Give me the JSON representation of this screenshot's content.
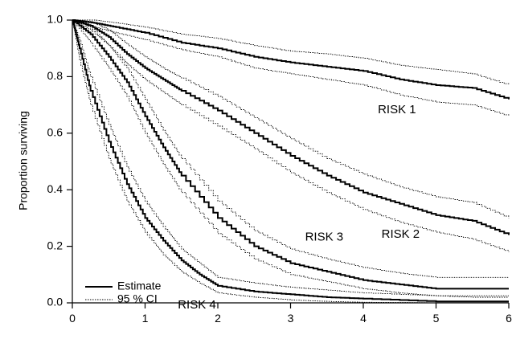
{
  "chart_data": {
    "type": "line",
    "title": "",
    "xlabel": "",
    "ylabel": "Proportion surviving",
    "xlim": [
      0,
      6
    ],
    "ylim": [
      0.0,
      1.0
    ],
    "x_ticks": [
      "0",
      "1",
      "2",
      "3",
      "4",
      "5",
      "6"
    ],
    "y_ticks": [
      "0.0",
      "0.2",
      "0.4",
      "0.6",
      "0.8",
      "1.0"
    ],
    "grid": false,
    "legend": {
      "placement": "bottom-left",
      "entries": [
        {
          "label": "Estimate",
          "style": "solid"
        },
        {
          "label": "95 % CI",
          "style": "dotted"
        }
      ]
    },
    "series": [
      {
        "name": "RISK 1",
        "label_at": [
          4.2,
          0.67
        ],
        "x": [
          0,
          0.3,
          0.6,
          1.0,
          1.5,
          2.0,
          2.5,
          3.0,
          3.5,
          4.0,
          4.5,
          5.0,
          5.5,
          6.0
        ],
        "estimate": [
          1.0,
          0.99,
          0.975,
          0.955,
          0.92,
          0.9,
          0.87,
          0.85,
          0.835,
          0.82,
          0.79,
          0.77,
          0.76,
          0.72
        ],
        "ci_upper": [
          1.0,
          1.0,
          0.99,
          0.975,
          0.95,
          0.935,
          0.91,
          0.89,
          0.88,
          0.865,
          0.84,
          0.825,
          0.81,
          0.77
        ],
        "ci_lower": [
          1.0,
          0.975,
          0.955,
          0.93,
          0.895,
          0.87,
          0.83,
          0.81,
          0.79,
          0.77,
          0.735,
          0.71,
          0.7,
          0.66
        ]
      },
      {
        "name": "RISK 2",
        "label_at": [
          4.25,
          0.23
        ],
        "x": [
          0,
          0.25,
          0.5,
          0.75,
          1.0,
          1.25,
          1.5,
          2.0,
          2.5,
          3.0,
          3.5,
          4.0,
          4.5,
          5.0,
          5.5,
          6.0
        ],
        "estimate": [
          1.0,
          0.98,
          0.94,
          0.88,
          0.83,
          0.79,
          0.75,
          0.68,
          0.6,
          0.52,
          0.45,
          0.39,
          0.35,
          0.31,
          0.29,
          0.24
        ],
        "ci_upper": [
          1.0,
          0.995,
          0.965,
          0.915,
          0.87,
          0.83,
          0.795,
          0.73,
          0.655,
          0.58,
          0.51,
          0.455,
          0.41,
          0.375,
          0.355,
          0.3
        ],
        "ci_lower": [
          1.0,
          0.965,
          0.91,
          0.845,
          0.79,
          0.745,
          0.7,
          0.625,
          0.545,
          0.46,
          0.39,
          0.33,
          0.285,
          0.25,
          0.225,
          0.18
        ]
      },
      {
        "name": "RISK 3",
        "label_at": [
          3.2,
          0.22
        ],
        "x": [
          0,
          0.25,
          0.5,
          0.75,
          1.0,
          1.25,
          1.5,
          2.0,
          2.5,
          3.0,
          3.5,
          4.0,
          4.5,
          5.0,
          5.5,
          6.0
        ],
        "estimate": [
          1.0,
          0.95,
          0.87,
          0.78,
          0.66,
          0.55,
          0.45,
          0.3,
          0.2,
          0.14,
          0.11,
          0.08,
          0.065,
          0.05,
          0.05,
          0.05
        ],
        "ci_upper": [
          1.0,
          0.975,
          0.91,
          0.83,
          0.72,
          0.61,
          0.51,
          0.36,
          0.255,
          0.19,
          0.155,
          0.125,
          0.105,
          0.09,
          0.09,
          0.09
        ],
        "ci_lower": [
          1.0,
          0.92,
          0.83,
          0.73,
          0.6,
          0.49,
          0.39,
          0.245,
          0.155,
          0.1,
          0.075,
          0.05,
          0.035,
          0.025,
          0.02,
          0.02
        ]
      },
      {
        "name": "RISK 4",
        "label_at": [
          1.45,
          -0.02
        ],
        "x": [
          0,
          0.1,
          0.25,
          0.5,
          0.75,
          1.0,
          1.25,
          1.5,
          1.75,
          2.0,
          2.5,
          3.0,
          3.5,
          4.0,
          5.0,
          6.0
        ],
        "estimate": [
          1.0,
          0.9,
          0.75,
          0.57,
          0.42,
          0.3,
          0.22,
          0.15,
          0.1,
          0.06,
          0.04,
          0.03,
          0.02,
          0.015,
          0.005,
          0.005
        ],
        "ci_upper": [
          1.0,
          0.93,
          0.8,
          0.63,
          0.48,
          0.36,
          0.27,
          0.19,
          0.14,
          0.09,
          0.07,
          0.055,
          0.045,
          0.035,
          0.025,
          0.025
        ],
        "ci_lower": [
          1.0,
          0.86,
          0.7,
          0.51,
          0.36,
          0.25,
          0.17,
          0.11,
          0.07,
          0.035,
          0.02,
          0.01,
          0.005,
          0.002,
          0.0,
          0.0
        ]
      }
    ]
  }
}
